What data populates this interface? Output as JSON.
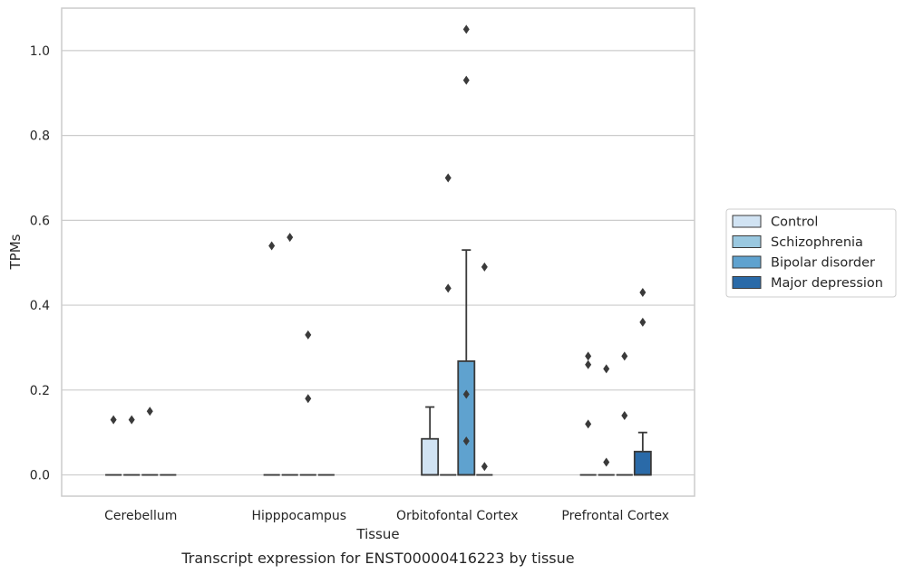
{
  "chart_data": {
    "type": "boxplot",
    "title": "",
    "caption": "Transcript expression for ENST00000416223 by tissue",
    "xlabel": "Tissue",
    "ylabel": "TPMs",
    "ylim": [
      -0.05,
      1.1
    ],
    "yticks": [
      0.0,
      0.2,
      0.4,
      0.6,
      0.8,
      1.0
    ],
    "ytick_labels": [
      "0.0",
      "0.2",
      "0.4",
      "0.6",
      "0.8",
      "1.0"
    ],
    "grid": "horizontal",
    "legend_position": "right-outside",
    "categories": [
      "Cerebellum",
      "Hipppocampus",
      "Orbitofontal Cortex",
      "Prefrontal Cortex"
    ],
    "series": [
      {
        "name": "Control",
        "color": "#d1e3f3",
        "boxes": [
          {
            "q1": 0.0,
            "median": 0.0,
            "q3": 0.0,
            "whisker_low": 0.0,
            "whisker_high": 0.0,
            "outliers": [
              0.13
            ]
          },
          {
            "q1": 0.0,
            "median": 0.0,
            "q3": 0.0,
            "whisker_low": 0.0,
            "whisker_high": 0.0,
            "outliers": [
              0.54
            ]
          },
          {
            "q1": 0.0,
            "median": 0.0,
            "q3": 0.085,
            "whisker_low": 0.0,
            "whisker_high": 0.16,
            "outliers": []
          },
          {
            "q1": 0.0,
            "median": 0.0,
            "q3": 0.0,
            "whisker_low": 0.0,
            "whisker_high": 0.0,
            "outliers": [
              0.28,
              0.26,
              0.12
            ]
          }
        ]
      },
      {
        "name": "Schizophrenia",
        "color": "#9ac8e0",
        "boxes": [
          {
            "q1": 0.0,
            "median": 0.0,
            "q3": 0.0,
            "whisker_low": 0.0,
            "whisker_high": 0.0,
            "outliers": [
              0.13
            ]
          },
          {
            "q1": 0.0,
            "median": 0.0,
            "q3": 0.0,
            "whisker_low": 0.0,
            "whisker_high": 0.0,
            "outliers": [
              0.56
            ]
          },
          {
            "q1": 0.0,
            "median": 0.0,
            "q3": 0.0,
            "whisker_low": 0.0,
            "whisker_high": 0.0,
            "outliers": [
              0.7,
              0.44
            ]
          },
          {
            "q1": 0.0,
            "median": 0.0,
            "q3": 0.0,
            "whisker_low": 0.0,
            "whisker_high": 0.0,
            "outliers": [
              0.25,
              0.03
            ]
          }
        ]
      },
      {
        "name": "Bipolar disorder",
        "color": "#5fa2cf",
        "boxes": [
          {
            "q1": 0.0,
            "median": 0.0,
            "q3": 0.0,
            "whisker_low": 0.0,
            "whisker_high": 0.0,
            "outliers": [
              0.15
            ]
          },
          {
            "q1": 0.0,
            "median": 0.0,
            "q3": 0.0,
            "whisker_low": 0.0,
            "whisker_high": 0.0,
            "outliers": [
              0.33,
              0.18
            ]
          },
          {
            "q1": 0.0,
            "median": 0.0,
            "q3": 0.268,
            "whisker_low": 0.0,
            "whisker_high": 0.53,
            "outliers": [
              1.05,
              0.93,
              0.19,
              0.08
            ]
          },
          {
            "q1": 0.0,
            "median": 0.0,
            "q3": 0.0,
            "whisker_low": 0.0,
            "whisker_high": 0.0,
            "outliers": [
              0.28,
              0.14
            ]
          }
        ]
      },
      {
        "name": "Major depression",
        "color": "#2a6aa8",
        "boxes": [
          {
            "q1": 0.0,
            "median": 0.0,
            "q3": 0.0,
            "whisker_low": 0.0,
            "whisker_high": 0.0,
            "outliers": []
          },
          {
            "q1": 0.0,
            "median": 0.0,
            "q3": 0.0,
            "whisker_low": 0.0,
            "whisker_high": 0.0,
            "outliers": []
          },
          {
            "q1": 0.0,
            "median": 0.0,
            "q3": 0.0,
            "whisker_low": 0.0,
            "whisker_high": 0.0,
            "outliers": [
              0.49,
              0.02
            ]
          },
          {
            "q1": 0.0,
            "median": 0.0,
            "q3": 0.055,
            "whisker_low": 0.0,
            "whisker_high": 0.1,
            "outliers": [
              0.43,
              0.36
            ]
          }
        ]
      }
    ]
  }
}
